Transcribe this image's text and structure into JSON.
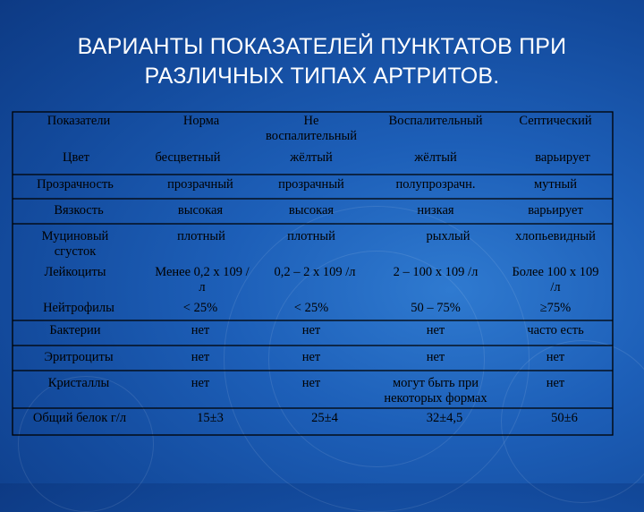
{
  "slide": {
    "title": "ВАРИАНТЫ ПОКАЗАТЕЛЕЙ ПУНКТАТОВ ПРИ РАЗЛИЧНЫХ ТИПАХ АРТРИТОВ."
  },
  "table": {
    "headers": [
      "Показатели",
      "Норма",
      "Не\nвоспалительный",
      "Воспалительный",
      "Септический"
    ],
    "rows": [
      [
        "Цвет",
        "бесцветный",
        "жёлтый",
        "жёлтый",
        "варьирует"
      ],
      [
        "Прозрачность",
        "прозрачный",
        "прозрачный",
        "полупрозрачн.",
        "мутный"
      ],
      [
        "Вязкость",
        "высокая",
        "высокая",
        "низкая",
        "варьирует"
      ],
      [
        "Муциновый\nсгусток",
        "плотный",
        "плотный",
        "рыхлый",
        "хлопьевидный"
      ],
      [
        "Лейкоциты",
        "Менее 0,2 х 109 /\nл",
        "0,2 – 2 х 109 /л",
        "2 – 100 х 109 /л",
        "Более 100 х 109\n/л"
      ],
      [
        "Нейтрофилы",
        "< 25%",
        "< 25%",
        "50 – 75%",
        "≥75%"
      ],
      [
        "Бактерии",
        "нет",
        "нет",
        "нет",
        "часто есть"
      ],
      [
        "Эритроциты",
        "нет",
        "нет",
        "нет",
        "нет"
      ],
      [
        "Кристаллы",
        "нет",
        "нет",
        "могут быть при\nнекоторых формах",
        "нет"
      ],
      [
        "Общий белок г/л",
        "15±3",
        "25±4",
        "32±4,5",
        "50±6"
      ]
    ]
  }
}
